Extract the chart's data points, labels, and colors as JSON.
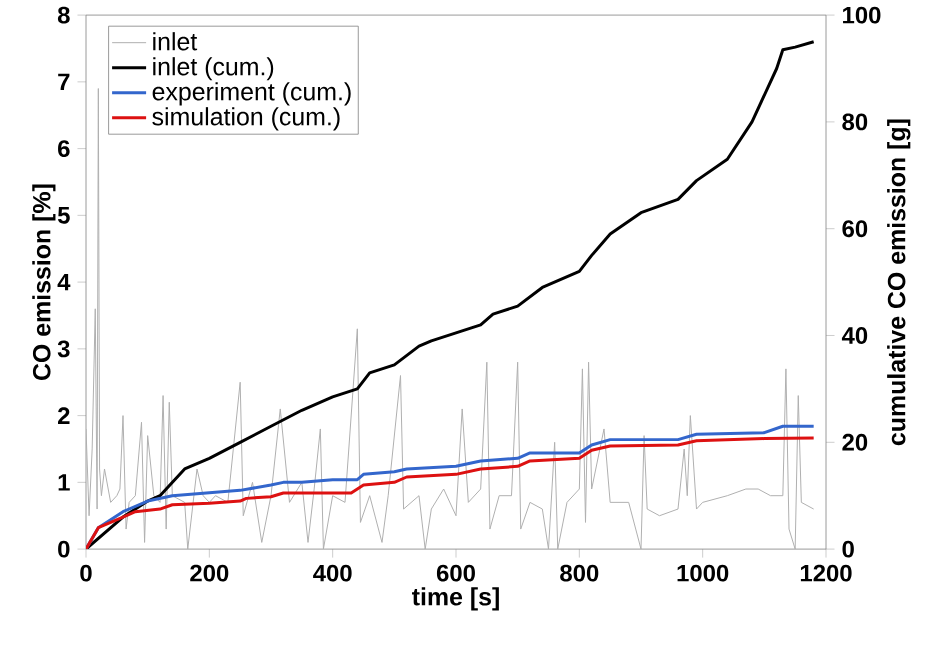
{
  "chart_data": {
    "type": "line",
    "xlabel": "time [s]",
    "ylabel": "CO emission [%]",
    "y2label": "cumulative CO emission [g]",
    "xlim": [
      0,
      1200
    ],
    "xticks": [
      0,
      200,
      400,
      600,
      800,
      1000,
      1200
    ],
    "ylim": [
      0,
      8
    ],
    "yticks": [
      0,
      1,
      2,
      3,
      4,
      5,
      6,
      7,
      8
    ],
    "y2lim": [
      0,
      100
    ],
    "y2ticks": [
      0,
      20,
      40,
      60,
      80,
      100
    ],
    "grid": false,
    "legend": "top left",
    "marker": "none",
    "line_style": "solid",
    "series": [
      {
        "name": "inlet",
        "color": "#b0b0b0",
        "axis": "y",
        "x": [
          0,
          5,
          10,
          15,
          18,
          20,
          22,
          25,
          30,
          40,
          50,
          55,
          60,
          65,
          70,
          80,
          90,
          95,
          100,
          110,
          120,
          125,
          130,
          135,
          140,
          160,
          165,
          175,
          180,
          190,
          200,
          210,
          230,
          250,
          255,
          270,
          285,
          300,
          315,
          330,
          350,
          360,
          370,
          380,
          385,
          400,
          420,
          440,
          445,
          460,
          480,
          490,
          510,
          515,
          540,
          550,
          560,
          580,
          600,
          610,
          620,
          640,
          650,
          655,
          670,
          690,
          700,
          705,
          720,
          740,
          750,
          760,
          765,
          780,
          800,
          805,
          810,
          815,
          820,
          840,
          850,
          880,
          900,
          905,
          910,
          930,
          960,
          970,
          975,
          980,
          990,
          1000,
          1040,
          1070,
          1090,
          1110,
          1130,
          1135,
          1140,
          1150,
          1155,
          1160,
          1180
        ],
        "values": [
          1.8,
          0.5,
          1.5,
          3.6,
          0.6,
          6.9,
          1.2,
          0.8,
          1.2,
          0.7,
          0.8,
          0.9,
          2.0,
          0.3,
          0.7,
          0.8,
          1.9,
          0.1,
          1.7,
          0.8,
          0.7,
          2.3,
          0.3,
          2.2,
          0.8,
          0.7,
          0,
          0.8,
          1.2,
          0.8,
          0.7,
          0.8,
          0.7,
          2.5,
          0.5,
          1.0,
          0.1,
          0.8,
          2.1,
          0.7,
          1.0,
          0.1,
          0.9,
          1.8,
          0,
          0.8,
          0.7,
          3.3,
          0.4,
          0.8,
          0.1,
          0.8,
          2.6,
          0.6,
          0.8,
          0,
          0.6,
          0.9,
          0.5,
          2.1,
          0.7,
          0.9,
          2.8,
          0.3,
          0.8,
          0.8,
          2.8,
          0.3,
          0.7,
          0.6,
          0,
          1.6,
          0,
          0.7,
          0.9,
          2.7,
          0.4,
          2.8,
          0.9,
          1.8,
          0.7,
          0.7,
          0,
          1.7,
          0.6,
          0.5,
          0.6,
          1.5,
          0.8,
          2.0,
          0.6,
          0.7,
          0.8,
          0.9,
          0.9,
          0.8,
          0.8,
          2.7,
          0.3,
          0,
          2.3,
          0.7,
          0.6
        ]
      },
      {
        "name": "inlet (cum.)",
        "color": "#000000",
        "axis": "y2",
        "x": [
          0,
          20,
          60,
          100,
          120,
          160,
          200,
          250,
          300,
          350,
          400,
          440,
          460,
          500,
          540,
          560,
          600,
          640,
          660,
          700,
          740,
          800,
          820,
          850,
          900,
          960,
          990,
          1040,
          1080,
          1120,
          1130,
          1150,
          1180
        ],
        "values": [
          0,
          null,
          6,
          9,
          10,
          15,
          17,
          20,
          23,
          26,
          28.5,
          30,
          33,
          34.5,
          38,
          39,
          40.5,
          42,
          44,
          45.5,
          49,
          52,
          55,
          59,
          63,
          65.5,
          69,
          73,
          80,
          90,
          93.5,
          94,
          95
        ]
      },
      {
        "name": "experiment (cum.)",
        "color": "#3366cc",
        "axis": "y2",
        "x": [
          0,
          20,
          60,
          100,
          140,
          250,
          300,
          320,
          350,
          400,
          440,
          450,
          500,
          520,
          600,
          640,
          700,
          720,
          800,
          820,
          850,
          960,
          990,
          1100,
          1130,
          1180
        ],
        "values": [
          0,
          4,
          7,
          9,
          10,
          11,
          12,
          12.5,
          12.5,
          13,
          13,
          14,
          14.5,
          15,
          15.5,
          16.5,
          17,
          18,
          18,
          19.5,
          20.5,
          20.5,
          21.5,
          21.8,
          23,
          23
        ]
      },
      {
        "name": "simulation (cum.)",
        "color": "#dd1111",
        "axis": "y2",
        "x": [
          0,
          20,
          60,
          80,
          120,
          140,
          200,
          250,
          260,
          300,
          320,
          430,
          450,
          500,
          520,
          600,
          640,
          700,
          720,
          800,
          820,
          850,
          960,
          990,
          1100,
          1180
        ],
        "values": [
          0,
          4,
          6,
          7,
          7.5,
          8.3,
          8.6,
          9,
          9.5,
          9.8,
          10.5,
          10.5,
          12,
          12.5,
          13.5,
          14,
          15,
          15.5,
          16.5,
          17,
          18.5,
          19.3,
          19.5,
          20.3,
          20.7,
          20.8
        ]
      }
    ]
  }
}
